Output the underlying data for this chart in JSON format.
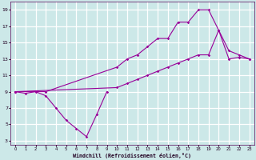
{
  "xlabel": "Windchill (Refroidissement éolien,°C)",
  "bg_color": "#cce8e8",
  "grid_color": "#ffffff",
  "line_color": "#990099",
  "xmin": -0.5,
  "xmax": 23.5,
  "ymin": 2.5,
  "ymax": 20.0,
  "yticks": [
    3,
    5,
    7,
    9,
    11,
    13,
    15,
    17,
    19
  ],
  "xticks": [
    0,
    1,
    2,
    3,
    4,
    5,
    6,
    7,
    8,
    9,
    10,
    11,
    12,
    13,
    14,
    15,
    16,
    17,
    18,
    19,
    20,
    21,
    22,
    23
  ],
  "line1": {
    "x": [
      0,
      1,
      2,
      3,
      4,
      5,
      6,
      7,
      8,
      9
    ],
    "y": [
      9,
      8.8,
      9.0,
      8.5,
      7.0,
      5.5,
      4.5,
      3.5,
      6.2,
      9.0
    ]
  },
  "line2": {
    "x": [
      0,
      3,
      10,
      11,
      12,
      13,
      14,
      15,
      16,
      17,
      18,
      19,
      20,
      21,
      22,
      23
    ],
    "y": [
      9,
      9,
      12,
      13,
      13.5,
      14.5,
      15.5,
      15.5,
      17.5,
      17.5,
      19,
      19,
      16.5,
      14.0,
      13.5,
      13
    ]
  },
  "line3": {
    "x": [
      0,
      10,
      11,
      12,
      13,
      14,
      15,
      16,
      17,
      18,
      19,
      20,
      21,
      22,
      23
    ],
    "y": [
      9,
      9.5,
      10,
      10.5,
      11,
      11.5,
      12.0,
      12.5,
      13,
      13.5,
      13.5,
      16.5,
      13.0,
      13.2,
      13
    ]
  }
}
